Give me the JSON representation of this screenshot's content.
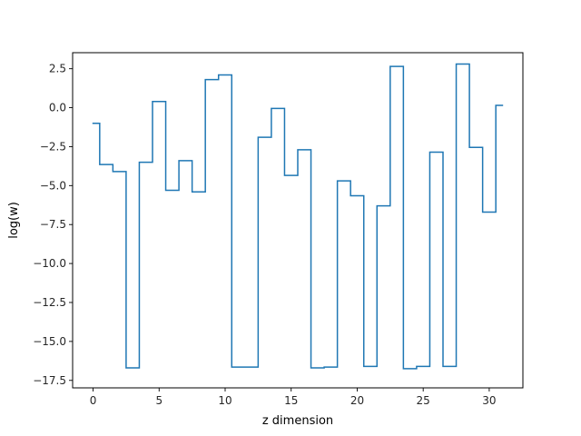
{
  "chart_data": {
    "type": "line",
    "drawstyle": "steps-mid",
    "title": "",
    "xlabel": "z dimension",
    "ylabel": "log(w)",
    "xlim": [
      -1.55,
      32.55
    ],
    "ylim": [
      -17.98,
      3.53
    ],
    "xticks": [
      0,
      5,
      10,
      15,
      20,
      25,
      30
    ],
    "yticks": [
      -17.5,
      -15.0,
      -12.5,
      -10.0,
      -7.5,
      -5.0,
      -2.5,
      0.0,
      2.5
    ],
    "ytick_labels": [
      "−17.5",
      "−15.0",
      "−12.5",
      "−10.0",
      "−7.5",
      "−5.0",
      "−2.5",
      "0.0",
      "2.5"
    ],
    "grid": false,
    "color": "#1f77b4",
    "series": [
      {
        "x": [
          0,
          1,
          2,
          3,
          4,
          5,
          6,
          7,
          8,
          9,
          10,
          11,
          12,
          13,
          14,
          15,
          16,
          17,
          18,
          19,
          20,
          21,
          22,
          23,
          24,
          25,
          26,
          27,
          28,
          29,
          30,
          31
        ],
        "y": [
          -1.0,
          -3.65,
          -4.1,
          -16.7,
          -3.5,
          0.4,
          -5.3,
          -3.4,
          -5.4,
          1.8,
          2.1,
          -16.65,
          -16.65,
          -1.9,
          -0.05,
          -4.35,
          -2.7,
          -16.7,
          -16.65,
          -4.7,
          -5.65,
          -16.6,
          -6.3,
          2.65,
          -16.75,
          -16.6,
          -2.85,
          -16.6,
          2.8,
          -2.55,
          -6.7,
          0.15
        ]
      }
    ]
  }
}
